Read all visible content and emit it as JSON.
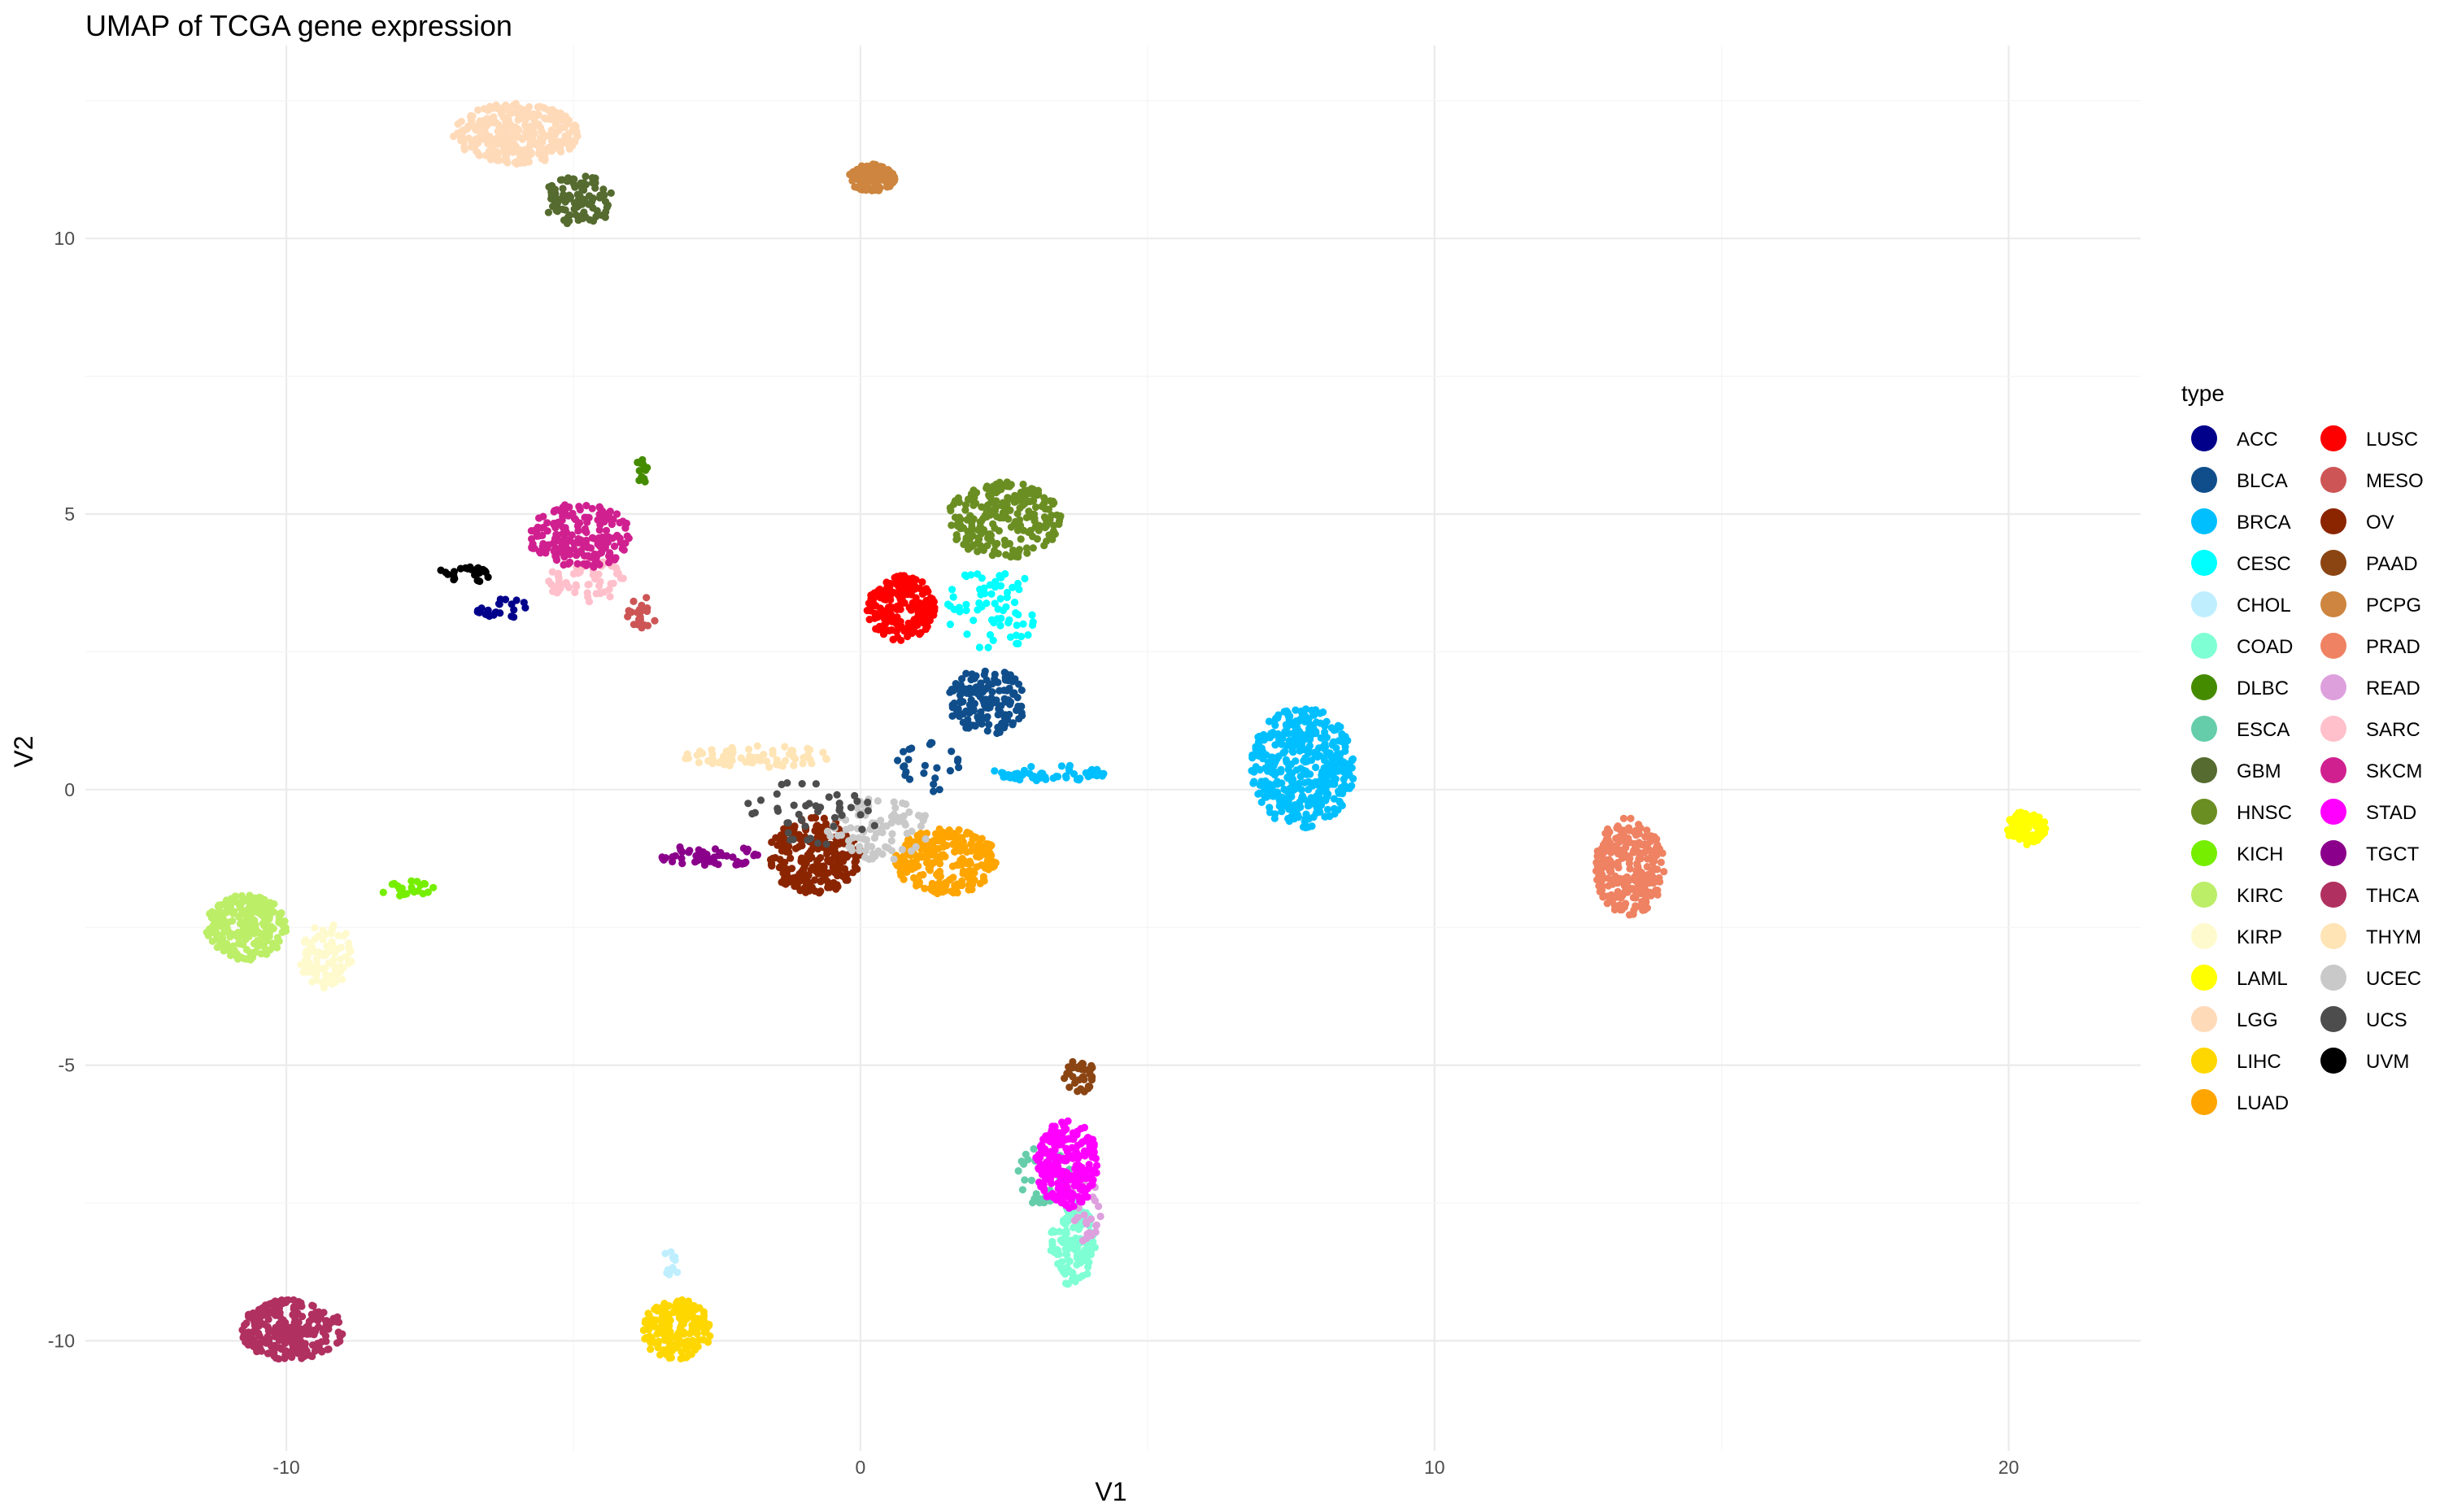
{
  "chart_data": {
    "type": "scatter",
    "title": "UMAP of TCGA gene expression",
    "xlabel": "V1",
    "ylabel": "V2",
    "xlim": [
      -13.5,
      22.3
    ],
    "ylim": [
      -12,
      13.5
    ],
    "x_ticks": [
      -10,
      0,
      10,
      20
    ],
    "y_ticks": [
      -10,
      -5,
      0,
      5,
      10
    ],
    "grid": true,
    "legend_title": "type",
    "legend_position": "right",
    "series": [
      {
        "name": "ACC",
        "color": "#00008B",
        "clusters": [
          {
            "cx": -6.2,
            "cy": 3.3,
            "rx": 0.5,
            "ry": 0.25,
            "n": 25
          }
        ]
      },
      {
        "name": "BLCA",
        "color": "#104E8B",
        "clusters": [
          {
            "cx": 2.2,
            "cy": 1.6,
            "rx": 0.7,
            "ry": 0.6,
            "n": 140
          },
          {
            "cx": 1.2,
            "cy": 0.4,
            "rx": 0.6,
            "ry": 0.5,
            "n": 25
          }
        ]
      },
      {
        "name": "BRCA",
        "color": "#00BFFF",
        "clusters": [
          {
            "cx": 7.7,
            "cy": 0.4,
            "rx": 0.9,
            "ry": 1.1,
            "n": 420
          },
          {
            "cx": 3.3,
            "cy": 0.3,
            "rx": 1.0,
            "ry": 0.15,
            "n": 60
          }
        ]
      },
      {
        "name": "CESC",
        "color": "#00FFFF",
        "clusters": [
          {
            "cx": 2.3,
            "cy": 3.3,
            "rx": 0.8,
            "ry": 0.8,
            "n": 70
          }
        ]
      },
      {
        "name": "CHOL",
        "color": "#BFEFFF",
        "clusters": [
          {
            "cx": -3.3,
            "cy": -8.6,
            "rx": 0.2,
            "ry": 0.25,
            "n": 12
          }
        ]
      },
      {
        "name": "COAD",
        "color": "#7FFFD4",
        "clusters": [
          {
            "cx": 3.7,
            "cy": -8.2,
            "rx": 0.4,
            "ry": 0.8,
            "n": 130
          }
        ]
      },
      {
        "name": "DLBC",
        "color": "#458B00",
        "clusters": [
          {
            "cx": -3.8,
            "cy": 5.8,
            "rx": 0.1,
            "ry": 0.3,
            "n": 12
          }
        ]
      },
      {
        "name": "ESCA",
        "color": "#66CDAA",
        "clusters": [
          {
            "cx": 3.2,
            "cy": -7.0,
            "rx": 0.5,
            "ry": 0.6,
            "n": 40
          }
        ]
      },
      {
        "name": "GBM",
        "color": "#556B2F",
        "clusters": [
          {
            "cx": -4.9,
            "cy": 10.7,
            "rx": 0.6,
            "ry": 0.5,
            "n": 90
          }
        ]
      },
      {
        "name": "HNSC",
        "color": "#6B8E23",
        "clusters": [
          {
            "cx": 2.5,
            "cy": 4.9,
            "rx": 1.0,
            "ry": 0.7,
            "n": 230
          }
        ]
      },
      {
        "name": "KICH",
        "color": "#76EE00",
        "clusters": [
          {
            "cx": -7.8,
            "cy": -1.8,
            "rx": 0.6,
            "ry": 0.15,
            "n": 22
          }
        ]
      },
      {
        "name": "KIRC",
        "color": "#BCEE68",
        "clusters": [
          {
            "cx": -10.7,
            "cy": -2.5,
            "rx": 0.7,
            "ry": 0.6,
            "n": 230
          }
        ]
      },
      {
        "name": "KIRP",
        "color": "#FFFACD",
        "clusters": [
          {
            "cx": -9.3,
            "cy": -3.0,
            "rx": 0.5,
            "ry": 0.6,
            "n": 90
          }
        ]
      },
      {
        "name": "LAML",
        "color": "#FFFF00",
        "clusters": [
          {
            "cx": 20.3,
            "cy": -0.7,
            "rx": 0.35,
            "ry": 0.3,
            "n": 110
          }
        ]
      },
      {
        "name": "LGG",
        "color": "#FFDAB9",
        "clusters": [
          {
            "cx": -6.0,
            "cy": 11.9,
            "rx": 1.1,
            "ry": 0.55,
            "n": 340
          }
        ]
      },
      {
        "name": "LIHC",
        "color": "#FFD700",
        "clusters": [
          {
            "cx": -3.2,
            "cy": -9.8,
            "rx": 0.6,
            "ry": 0.55,
            "n": 170
          }
        ]
      },
      {
        "name": "LUAD",
        "color": "#FFA500",
        "clusters": [
          {
            "cx": 1.5,
            "cy": -1.3,
            "rx": 0.9,
            "ry": 0.6,
            "n": 260
          }
        ]
      },
      {
        "name": "LUSC",
        "color": "#FF0000",
        "clusters": [
          {
            "cx": 0.7,
            "cy": 3.3,
            "rx": 0.6,
            "ry": 0.6,
            "n": 200
          }
        ]
      },
      {
        "name": "MESO",
        "color": "#CD5555",
        "clusters": [
          {
            "cx": -3.8,
            "cy": 3.2,
            "rx": 0.3,
            "ry": 0.3,
            "n": 20
          }
        ]
      },
      {
        "name": "OV",
        "color": "#8B2500",
        "clusters": [
          {
            "cx": -0.8,
            "cy": -1.2,
            "rx": 0.8,
            "ry": 0.7,
            "n": 260
          }
        ]
      },
      {
        "name": "PAAD",
        "color": "#8B4513",
        "clusters": [
          {
            "cx": 3.8,
            "cy": -5.2,
            "rx": 0.3,
            "ry": 0.3,
            "n": 35
          }
        ]
      },
      {
        "name": "PCPG",
        "color": "#CD853F",
        "clusters": [
          {
            "cx": 0.2,
            "cy": 11.1,
            "rx": 0.4,
            "ry": 0.25,
            "n": 120
          }
        ]
      },
      {
        "name": "PRAD",
        "color": "#EE8262",
        "clusters": [
          {
            "cx": 13.4,
            "cy": -1.4,
            "rx": 0.6,
            "ry": 0.9,
            "n": 260
          }
        ]
      },
      {
        "name": "READ",
        "color": "#DDA0DD",
        "clusters": [
          {
            "cx": 3.9,
            "cy": -7.6,
            "rx": 0.3,
            "ry": 0.6,
            "n": 25
          }
        ]
      },
      {
        "name": "SARC",
        "color": "#FFC0CB",
        "clusters": [
          {
            "cx": -4.8,
            "cy": 3.8,
            "rx": 0.7,
            "ry": 0.4,
            "n": 60
          }
        ]
      },
      {
        "name": "SKCM",
        "color": "#D02090",
        "clusters": [
          {
            "cx": -4.9,
            "cy": 4.6,
            "rx": 0.9,
            "ry": 0.6,
            "n": 200
          }
        ]
      },
      {
        "name": "STAD",
        "color": "#FF00FF",
        "clusters": [
          {
            "cx": 3.6,
            "cy": -6.8,
            "rx": 0.55,
            "ry": 0.8,
            "n": 240
          }
        ]
      },
      {
        "name": "TGCT",
        "color": "#8B008B",
        "clusters": [
          {
            "cx": -2.6,
            "cy": -1.2,
            "rx": 0.9,
            "ry": 0.2,
            "n": 50
          }
        ]
      },
      {
        "name": "THCA",
        "color": "#B03060",
        "clusters": [
          {
            "cx": -9.9,
            "cy": -9.8,
            "rx": 0.9,
            "ry": 0.55,
            "n": 260
          }
        ]
      },
      {
        "name": "THYM",
        "color": "#FFE4B5",
        "clusters": [
          {
            "cx": -1.8,
            "cy": 0.6,
            "rx": 1.3,
            "ry": 0.2,
            "n": 70
          }
        ]
      },
      {
        "name": "UCEC",
        "color": "#C9C9C9",
        "clusters": [
          {
            "cx": 0.3,
            "cy": -0.7,
            "rx": 0.9,
            "ry": 0.6,
            "n": 90
          }
        ]
      },
      {
        "name": "UCS",
        "color": "#4D4D4D",
        "clusters": [
          {
            "cx": -0.8,
            "cy": -0.4,
            "rx": 1.2,
            "ry": 0.6,
            "n": 45
          }
        ]
      },
      {
        "name": "UVM",
        "color": "#000000",
        "clusters": [
          {
            "cx": -6.9,
            "cy": 3.9,
            "rx": 0.5,
            "ry": 0.15,
            "n": 25
          }
        ]
      }
    ]
  }
}
